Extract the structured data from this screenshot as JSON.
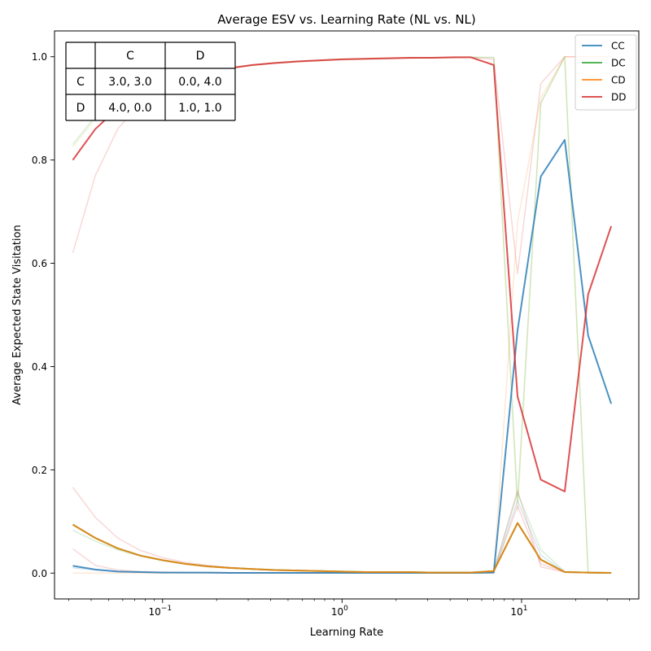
{
  "chart_data": {
    "type": "line",
    "title": "Average ESV vs. Learning Rate (NL vs. NL)",
    "xlabel": "Learning Rate",
    "ylabel": "Average Expected State Visitation",
    "xscale": "log",
    "xlim": [
      0.025,
      45
    ],
    "ylim": [
      -0.05,
      1.05
    ],
    "xticks": [
      {
        "value": 0.1,
        "base": "10",
        "exp": "−1"
      },
      {
        "value": 1,
        "base": "10",
        "exp": "0"
      },
      {
        "value": 10,
        "base": "10",
        "exp": "1"
      }
    ],
    "yticks": [
      {
        "value": 0.0,
        "label": "0.0"
      },
      {
        "value": 0.2,
        "label": "0.2"
      },
      {
        "value": 0.4,
        "label": "0.4"
      },
      {
        "value": 0.6,
        "label": "0.6"
      },
      {
        "value": 0.8,
        "label": "0.8"
      },
      {
        "value": 1.0,
        "label": "1.0"
      }
    ],
    "legend_position": "top-right",
    "x": [
      0.0316,
      0.0422,
      0.0562,
      0.075,
      0.1,
      0.1334,
      0.178,
      0.237,
      0.316,
      0.422,
      0.562,
      0.75,
      1.0,
      1.334,
      1.78,
      2.37,
      3.16,
      4.22,
      5.2,
      7.0,
      9.5,
      12.8,
      17.4,
      23.5,
      31.6
    ],
    "series": [
      {
        "name": "CC",
        "color": "#1f77b4",
        "values": [
          0.014,
          0.007,
          0.003,
          0.002,
          0.001,
          0.001,
          0.001,
          0.0005,
          0.0005,
          0.0005,
          0.0005,
          0.0005,
          0.0005,
          0.0005,
          0.0005,
          0.0005,
          0.0005,
          0.0005,
          0.0005,
          0.001,
          0.47,
          0.768,
          0.839,
          0.46,
          0.328
        ]
      },
      {
        "name": "DC",
        "color": "#2ca02c",
        "values": [
          0.094,
          0.068,
          0.048,
          0.034,
          0.025,
          0.018,
          0.013,
          0.01,
          0.008,
          0.006,
          0.005,
          0.004,
          0.003,
          0.002,
          0.002,
          0.002,
          0.001,
          0.001,
          0.001,
          0.004,
          0.097,
          0.026,
          0.002,
          0.001,
          0.0005
        ]
      },
      {
        "name": "CD",
        "color": "#ff7f0e",
        "values": [
          0.094,
          0.068,
          0.048,
          0.034,
          0.025,
          0.018,
          0.013,
          0.01,
          0.008,
          0.006,
          0.005,
          0.004,
          0.003,
          0.002,
          0.002,
          0.002,
          0.001,
          0.001,
          0.001,
          0.004,
          0.097,
          0.026,
          0.002,
          0.001,
          0.0005
        ]
      },
      {
        "name": "DD",
        "color": "#d62728",
        "values": [
          0.8,
          0.86,
          0.9,
          0.93,
          0.948,
          0.962,
          0.972,
          0.978,
          0.984,
          0.988,
          0.991,
          0.993,
          0.995,
          0.996,
          0.997,
          0.998,
          0.998,
          0.999,
          0.999,
          0.984,
          0.342,
          0.181,
          0.158,
          0.54,
          0.672
        ]
      }
    ],
    "faint_runs": [
      {
        "color": "#d62728",
        "values": [
          0.62,
          0.77,
          0.86,
          0.91,
          0.94,
          0.958,
          0.97,
          0.977,
          0.983,
          0.987,
          0.99,
          0.992,
          0.994,
          0.995,
          0.996,
          0.997,
          0.998,
          0.998,
          0.999,
          0.995,
          0.58,
          0.948,
          1.0,
          1.0,
          1.0
        ]
      },
      {
        "color": "#bcbd22",
        "values": [
          0.825,
          0.88,
          0.91,
          0.935,
          0.95,
          0.963,
          0.972,
          0.978,
          0.984,
          0.988,
          0.991,
          0.993,
          0.995,
          0.996,
          0.997,
          0.998,
          0.998,
          0.999,
          0.999,
          0.998,
          0.12,
          0.91,
          1.0,
          0.0,
          0.0
        ]
      },
      {
        "color": "#2ca02c",
        "values": [
          0.83,
          0.885,
          0.915,
          0.938,
          0.952,
          0.964,
          0.973,
          0.979,
          0.984,
          0.988,
          0.991,
          0.993,
          0.995,
          0.996,
          0.997,
          0.998,
          0.998,
          0.999,
          0.999,
          0.999,
          0.14,
          0.91,
          1.0,
          0.0,
          0.0
        ]
      },
      {
        "color": "#ff7f0e",
        "values": [
          0.0,
          0.0,
          0.0,
          0.0,
          0.0,
          0.0,
          0.0,
          0.0,
          0.0,
          0.0,
          0.0,
          0.0,
          0.0,
          0.0,
          0.0,
          0.0,
          0.0,
          0.0,
          0.0,
          0.0,
          0.68,
          0.92,
          1.0,
          1.0,
          1.0
        ]
      },
      {
        "color": "#d62728",
        "values": [
          0.166,
          0.108,
          0.068,
          0.044,
          0.03,
          0.021,
          0.015,
          0.011,
          0.008,
          0.006,
          0.005,
          0.004,
          0.003,
          0.002,
          0.002,
          0.002,
          0.001,
          0.001,
          0.001,
          0.004,
          0.16,
          0.012,
          0.002,
          0.001,
          0.0
        ]
      },
      {
        "color": "#d62728",
        "values": [
          0.047,
          0.015,
          0.006,
          0.003,
          0.002,
          0.001,
          0.001,
          0.001,
          0.0005,
          0.0005,
          0.0005,
          0.0005,
          0.0005,
          0.0005,
          0.0005,
          0.0005,
          0.0005,
          0.0005,
          0.0005,
          0.001,
          0.13,
          0.018,
          0.002,
          0.001,
          0.0
        ]
      },
      {
        "color": "#2ca02c",
        "values": [
          0.083,
          0.062,
          0.045,
          0.033,
          0.024,
          0.018,
          0.013,
          0.01,
          0.008,
          0.006,
          0.005,
          0.004,
          0.003,
          0.002,
          0.002,
          0.002,
          0.001,
          0.001,
          0.001,
          0.004,
          0.155,
          0.045,
          0.003,
          0.001,
          0.0
        ]
      },
      {
        "color": "#1f77b4",
        "values": [
          0.01,
          0.006,
          0.003,
          0.002,
          0.001,
          0.001,
          0.0005,
          0.0005,
          0.0005,
          0.0005,
          0.0005,
          0.0005,
          0.0005,
          0.0005,
          0.0005,
          0.0005,
          0.0005,
          0.0005,
          0.0005,
          0.001,
          0.14,
          0.035,
          0.002,
          0.001,
          0.0
        ]
      }
    ],
    "payoff_table": {
      "col_headers": [
        "",
        "C",
        "D"
      ],
      "rows": [
        {
          "label": "C",
          "cells": [
            "3.0, 3.0",
            "0.0, 4.0"
          ]
        },
        {
          "label": "D",
          "cells": [
            "4.0, 0.0",
            "1.0, 1.0"
          ]
        }
      ]
    }
  }
}
